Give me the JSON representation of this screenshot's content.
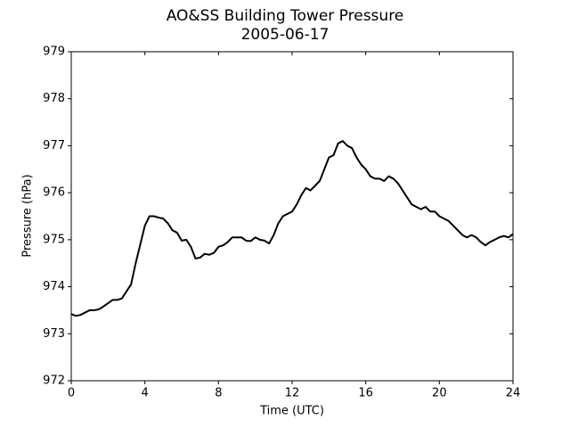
{
  "chart_data": {
    "type": "line",
    "title": "AO&SS Building Tower Pressure",
    "subtitle": "2005-06-17",
    "x_label": "Time (UTC)",
    "y_label": "Pressure (hPa)",
    "xlim": [
      0,
      24
    ],
    "xticks": [
      0,
      4,
      8,
      12,
      16,
      20,
      24
    ],
    "ylim": [
      972,
      979
    ],
    "yticks": [
      972,
      973,
      974,
      975,
      976,
      977,
      978,
      979
    ],
    "grid": false,
    "x": [
      0,
      0.25,
      0.5,
      0.75,
      1,
      1.25,
      1.5,
      1.75,
      2,
      2.25,
      2.5,
      2.75,
      3,
      3.25,
      3.5,
      3.75,
      4,
      4.25,
      4.5,
      4.75,
      5,
      5.25,
      5.5,
      5.75,
      6,
      6.25,
      6.5,
      6.75,
      7,
      7.25,
      7.5,
      7.75,
      8,
      8.25,
      8.5,
      8.75,
      9,
      9.25,
      9.5,
      9.75,
      10,
      10.25,
      10.5,
      10.75,
      11,
      11.25,
      11.5,
      11.75,
      12,
      12.25,
      12.5,
      12.75,
      13,
      13.25,
      13.5,
      13.75,
      14,
      14.25,
      14.5,
      14.75,
      15,
      15.25,
      15.5,
      15.75,
      16,
      16.25,
      16.5,
      16.75,
      17,
      17.25,
      17.5,
      17.75,
      18,
      18.25,
      18.5,
      18.75,
      19,
      19.25,
      19.5,
      19.75,
      20,
      20.25,
      20.5,
      20.75,
      21,
      21.25,
      21.5,
      21.75,
      22,
      22.25,
      22.5,
      22.75,
      23,
      23.25,
      23.5,
      23.75,
      24
    ],
    "series": [
      {
        "color": "#000000",
        "values": [
          973.42,
          973.38,
          973.4,
          973.45,
          973.5,
          973.5,
          973.52,
          973.58,
          973.65,
          973.72,
          973.72,
          973.75,
          973.9,
          974.05,
          974.5,
          974.9,
          975.3,
          975.5,
          975.5,
          975.47,
          975.45,
          975.35,
          975.2,
          975.15,
          974.98,
          975.0,
          974.85,
          974.6,
          974.62,
          974.7,
          974.68,
          974.72,
          974.85,
          974.88,
          974.95,
          975.05,
          975.05,
          975.05,
          974.98,
          974.97,
          975.05,
          975.0,
          974.98,
          974.92,
          975.1,
          975.35,
          975.5,
          975.55,
          975.6,
          975.75,
          975.95,
          976.1,
          976.05,
          976.15,
          976.25,
          976.5,
          976.75,
          976.8,
          977.05,
          977.1,
          977.0,
          976.95,
          976.75,
          976.6,
          976.5,
          976.35,
          976.3,
          976.3,
          976.25,
          976.35,
          976.3,
          976.2,
          976.05,
          975.9,
          975.75,
          975.7,
          975.65,
          975.7,
          975.6,
          975.6,
          975.5,
          975.45,
          975.4,
          975.3,
          975.2,
          975.1,
          975.05,
          975.1,
          975.05,
          974.95,
          974.88,
          974.95,
          975.0,
          975.05,
          975.08,
          975.05,
          975.12
        ]
      }
    ]
  }
}
